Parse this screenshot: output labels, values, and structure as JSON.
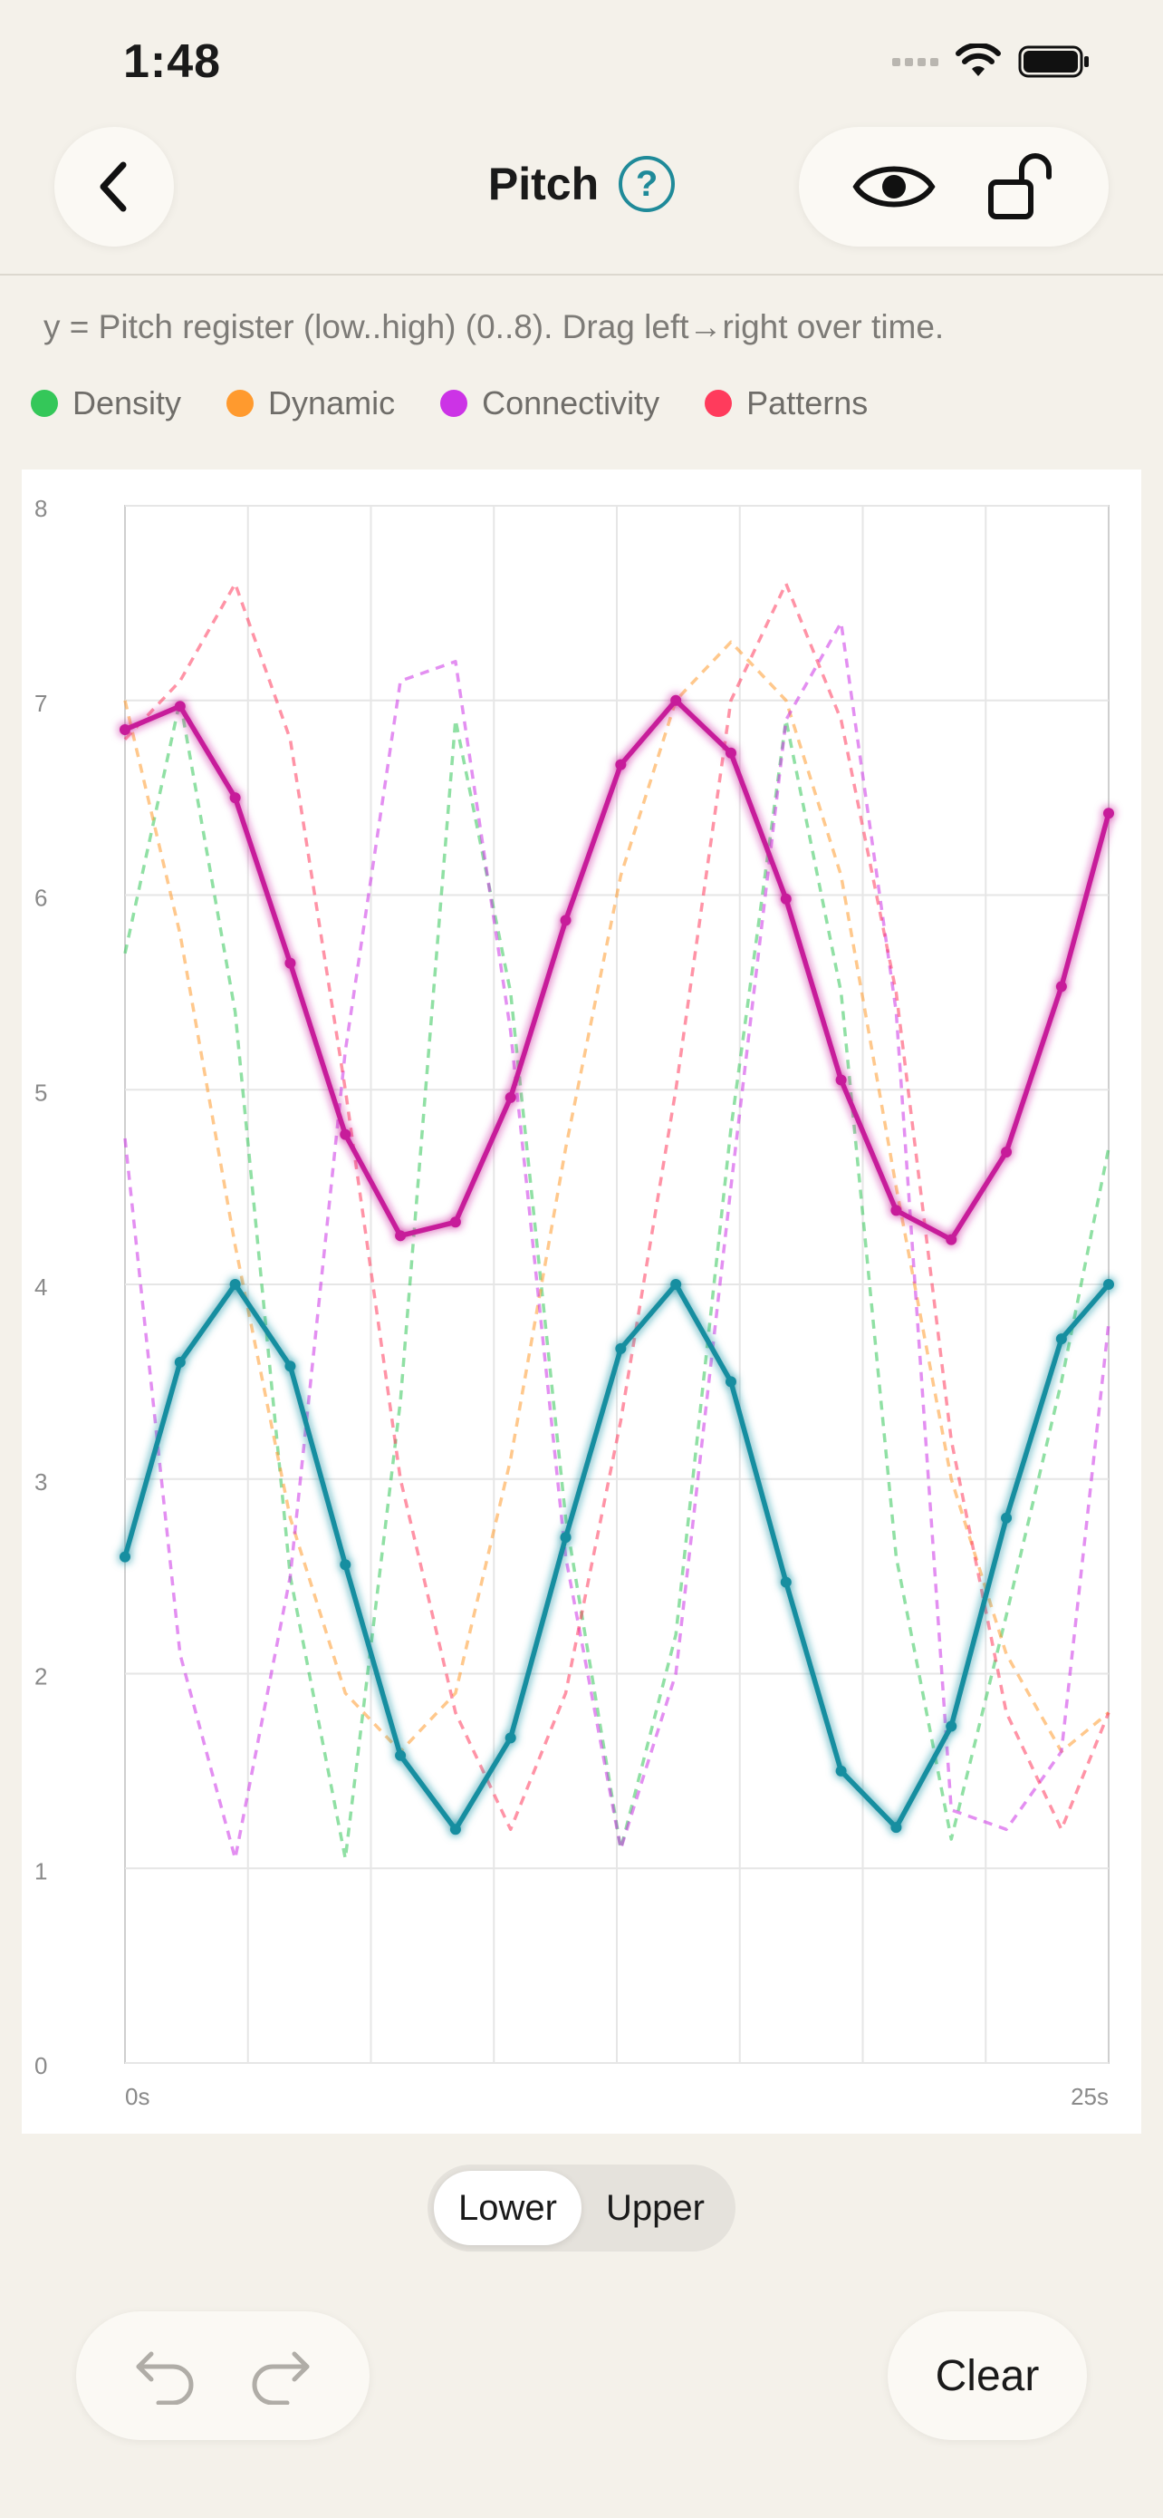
{
  "status": {
    "time": "1:48"
  },
  "nav": {
    "title": "Pitch",
    "help_glyph": "?"
  },
  "hint": "y = Pitch register (low..high) (0..8). Drag left→right over time.",
  "legend": [
    {
      "label": "Density",
      "color": "#34c759"
    },
    {
      "label": "Dynamic",
      "color": "#ff9a2e"
    },
    {
      "label": "Connectivity",
      "color": "#cc33e6"
    },
    {
      "label": "Patterns",
      "color": "#ff3b5c"
    }
  ],
  "chart_data": {
    "type": "line",
    "xlabel": "",
    "ylabel": "",
    "xlim": [
      0,
      25
    ],
    "ylim": [
      0,
      8
    ],
    "x_tick_labels": [
      "0s",
      "25s"
    ],
    "y_ticks": [
      0,
      1,
      2,
      3,
      4,
      5,
      6,
      7,
      8
    ],
    "grid": true,
    "reference_series": [
      {
        "name": "Density",
        "color": "#34c759",
        "x": [
          0,
          1.4,
          2.8,
          4.2,
          5.6,
          7,
          8.4,
          9.8,
          11.2,
          12.6,
          14,
          15.4,
          16.8,
          18.2,
          19.6,
          21,
          22.4,
          23.8,
          25
        ],
        "values": [
          5.7,
          7,
          5.4,
          2.5,
          1.05,
          3.4,
          6.9,
          5.5,
          2.8,
          1.1,
          2.2,
          4.8,
          6.9,
          5.5,
          2.6,
          1.15,
          2.3,
          3.5,
          4.7
        ]
      },
      {
        "name": "Dynamic",
        "color": "#ff9a2e",
        "x": [
          0,
          1.4,
          2.8,
          4.2,
          5.6,
          7,
          8.4,
          9.8,
          11.2,
          12.6,
          14,
          15.4,
          16.8,
          18.2,
          19.6,
          21,
          22.4,
          23.8,
          25
        ],
        "values": [
          7,
          5.8,
          4.2,
          2.8,
          1.9,
          1.6,
          1.9,
          3.1,
          4.7,
          6.1,
          7.0,
          7.3,
          7.0,
          6.1,
          4.5,
          3.0,
          2.1,
          1.6,
          1.8
        ]
      },
      {
        "name": "Connectivity",
        "color": "#cc33e6",
        "x": [
          0,
          1.4,
          2.8,
          4.2,
          5.6,
          7,
          8.4,
          9.8,
          11.2,
          12.6,
          14,
          15.4,
          16.8,
          18.2,
          19.6,
          21,
          22.4,
          23.8,
          25
        ],
        "values": [
          4.75,
          2.1,
          1.05,
          2.5,
          5.2,
          7.1,
          7.2,
          5.3,
          2.6,
          1.1,
          2.0,
          4.5,
          6.9,
          7.4,
          5.4,
          1.3,
          1.2,
          1.6,
          3.8
        ]
      },
      {
        "name": "Patterns",
        "color": "#ff3b5c",
        "x": [
          0,
          1.4,
          2.8,
          4.2,
          5.6,
          7,
          8.4,
          9.8,
          11.2,
          12.6,
          14,
          15.4,
          16.8,
          18.2,
          19.6,
          21,
          22.4,
          23.8,
          25
        ],
        "values": [
          6.8,
          7.1,
          7.6,
          6.8,
          5.0,
          3.0,
          1.8,
          1.2,
          1.9,
          3.3,
          5.0,
          7.0,
          7.6,
          6.9,
          5.5,
          3.2,
          1.8,
          1.2,
          1.8
        ]
      }
    ],
    "series": [
      {
        "name": "Upper",
        "color": "#c71f9a",
        "x": [
          0,
          1.4,
          2.8,
          4.2,
          5.6,
          7,
          8.4,
          9.8,
          11.2,
          12.6,
          14,
          15.4,
          16.8,
          18.2,
          19.6,
          21,
          22.4,
          23.8,
          25
        ],
        "values": [
          6.85,
          6.97,
          6.5,
          5.65,
          4.77,
          4.25,
          4.32,
          4.96,
          5.87,
          6.67,
          7.0,
          6.73,
          5.98,
          5.05,
          4.38,
          4.23,
          4.68,
          5.53,
          6.42
        ]
      },
      {
        "name": "Lower",
        "color": "#168ea0",
        "x": [
          0,
          1.4,
          2.8,
          4.2,
          5.6,
          7,
          8.4,
          9.8,
          11.2,
          12.6,
          14,
          15.4,
          16.8,
          18.2,
          19.6,
          21,
          22.4,
          23.8,
          25
        ],
        "values": [
          2.6,
          3.6,
          4.0,
          3.58,
          2.56,
          1.58,
          1.2,
          1.67,
          2.7,
          3.67,
          4.0,
          3.5,
          2.47,
          1.5,
          1.21,
          1.73,
          2.8,
          3.72,
          4.0
        ]
      }
    ]
  },
  "segmented": {
    "options": [
      "Lower",
      "Upper"
    ],
    "selected": "Lower"
  },
  "toolbar": {
    "clear_label": "Clear"
  },
  "icons": {
    "back": "chevron-left-icon",
    "help": "question-circle-icon",
    "visibility": "eye-icon",
    "lock": "unlock-icon",
    "undo": "undo-icon",
    "redo": "redo-icon"
  }
}
